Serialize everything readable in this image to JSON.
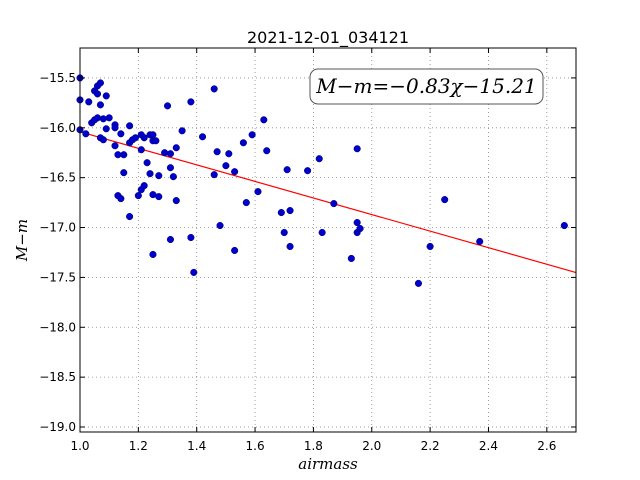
{
  "chart_data": {
    "type": "scatter",
    "title": "2021-12-01_034121",
    "xlabel": "airmass",
    "ylabel": "M−m",
    "xlim": [
      1.0,
      2.7
    ],
    "ylim": [
      -19.05,
      -15.2
    ],
    "xticks": [
      1.0,
      1.2,
      1.4,
      1.6,
      1.8,
      2.0,
      2.2,
      2.4,
      2.6
    ],
    "xtick_labels": [
      "1.0",
      "1.2",
      "1.4",
      "1.6",
      "1.8",
      "2.0",
      "2.2",
      "2.4",
      "2.6"
    ],
    "yticks": [
      -15.5,
      -16.0,
      -16.5,
      -17.0,
      -17.5,
      -18.0,
      -18.5,
      -19.0
    ],
    "ytick_labels": [
      "−15.5",
      "−16.0",
      "−16.5",
      "−17.0",
      "−17.5",
      "−18.0",
      "−18.5",
      "−19.0"
    ],
    "grid": true,
    "annotation": "M−m=−0.83χ−15.21",
    "fit": {
      "slope": -0.83,
      "intercept": -15.21
    },
    "colors": {
      "points": "#0000cc",
      "fit": "#ff0000",
      "grid": "#888888"
    },
    "points": [
      [
        1.0,
        -15.5
      ],
      [
        1.0,
        -15.72
      ],
      [
        1.0,
        -16.02
      ],
      [
        1.02,
        -16.06
      ],
      [
        1.03,
        -15.74
      ],
      [
        1.04,
        -15.95
      ],
      [
        1.05,
        -15.63
      ],
      [
        1.05,
        -15.92
      ],
      [
        1.06,
        -15.58
      ],
      [
        1.06,
        -15.66
      ],
      [
        1.07,
        -15.55
      ],
      [
        1.06,
        -15.9
      ],
      [
        1.07,
        -15.77
      ],
      [
        1.08,
        -15.91
      ],
      [
        1.07,
        -16.1
      ],
      [
        1.08,
        -16.12
      ],
      [
        1.09,
        -16.01
      ],
      [
        1.09,
        -15.68
      ],
      [
        1.1,
        -15.9
      ],
      [
        1.12,
        -15.97
      ],
      [
        1.12,
        -16.0
      ],
      [
        1.12,
        -16.18
      ],
      [
        1.13,
        -16.27
      ],
      [
        1.14,
        -16.06
      ],
      [
        1.15,
        -16.27
      ],
      [
        1.13,
        -16.68
      ],
      [
        1.14,
        -16.71
      ],
      [
        1.15,
        -16.45
      ],
      [
        1.17,
        -15.98
      ],
      [
        1.17,
        -16.15
      ],
      [
        1.18,
        -16.12
      ],
      [
        1.19,
        -16.1
      ],
      [
        1.17,
        -16.89
      ],
      [
        1.2,
        -16.68
      ],
      [
        1.21,
        -16.07
      ],
      [
        1.21,
        -16.22
      ],
      [
        1.22,
        -16.1
      ],
      [
        1.21,
        -16.62
      ],
      [
        1.22,
        -16.58
      ],
      [
        1.23,
        -16.35
      ],
      [
        1.24,
        -16.46
      ],
      [
        1.24,
        -16.07
      ],
      [
        1.25,
        -16.13
      ],
      [
        1.25,
        -16.07
      ],
      [
        1.26,
        -16.13
      ],
      [
        1.25,
        -16.67
      ],
      [
        1.25,
        -17.27
      ],
      [
        1.27,
        -16.48
      ],
      [
        1.27,
        -16.69
      ],
      [
        1.29,
        -16.25
      ],
      [
        1.3,
        -15.78
      ],
      [
        1.31,
        -16.26
      ],
      [
        1.31,
        -16.4
      ],
      [
        1.32,
        -16.49
      ],
      [
        1.31,
        -17.12
      ],
      [
        1.33,
        -16.2
      ],
      [
        1.33,
        -16.73
      ],
      [
        1.35,
        -16.03
      ],
      [
        1.38,
        -15.74
      ],
      [
        1.38,
        -17.1
      ],
      [
        1.39,
        -17.45
      ],
      [
        1.42,
        -16.09
      ],
      [
        1.46,
        -15.61
      ],
      [
        1.46,
        -16.47
      ],
      [
        1.47,
        -16.24
      ],
      [
        1.48,
        -16.98
      ],
      [
        1.5,
        -16.38
      ],
      [
        1.51,
        -16.26
      ],
      [
        1.53,
        -16.44
      ],
      [
        1.53,
        -17.23
      ],
      [
        1.56,
        -16.15
      ],
      [
        1.57,
        -16.75
      ],
      [
        1.59,
        -16.07
      ],
      [
        1.61,
        -16.64
      ],
      [
        1.63,
        -15.92
      ],
      [
        1.64,
        -16.23
      ],
      [
        1.69,
        -16.85
      ],
      [
        1.7,
        -17.05
      ],
      [
        1.71,
        -16.42
      ],
      [
        1.72,
        -17.19
      ],
      [
        1.72,
        -16.83
      ],
      [
        1.78,
        -16.43
      ],
      [
        1.82,
        -16.31
      ],
      [
        1.83,
        -17.05
      ],
      [
        1.87,
        -16.76
      ],
      [
        1.93,
        -17.31
      ],
      [
        1.95,
        -16.21
      ],
      [
        1.95,
        -16.95
      ],
      [
        1.95,
        -17.05
      ],
      [
        1.96,
        -17.01
      ],
      [
        2.16,
        -17.56
      ],
      [
        2.2,
        -17.19
      ],
      [
        2.25,
        -16.72
      ],
      [
        2.37,
        -17.14
      ],
      [
        2.66,
        -16.98
      ]
    ]
  }
}
